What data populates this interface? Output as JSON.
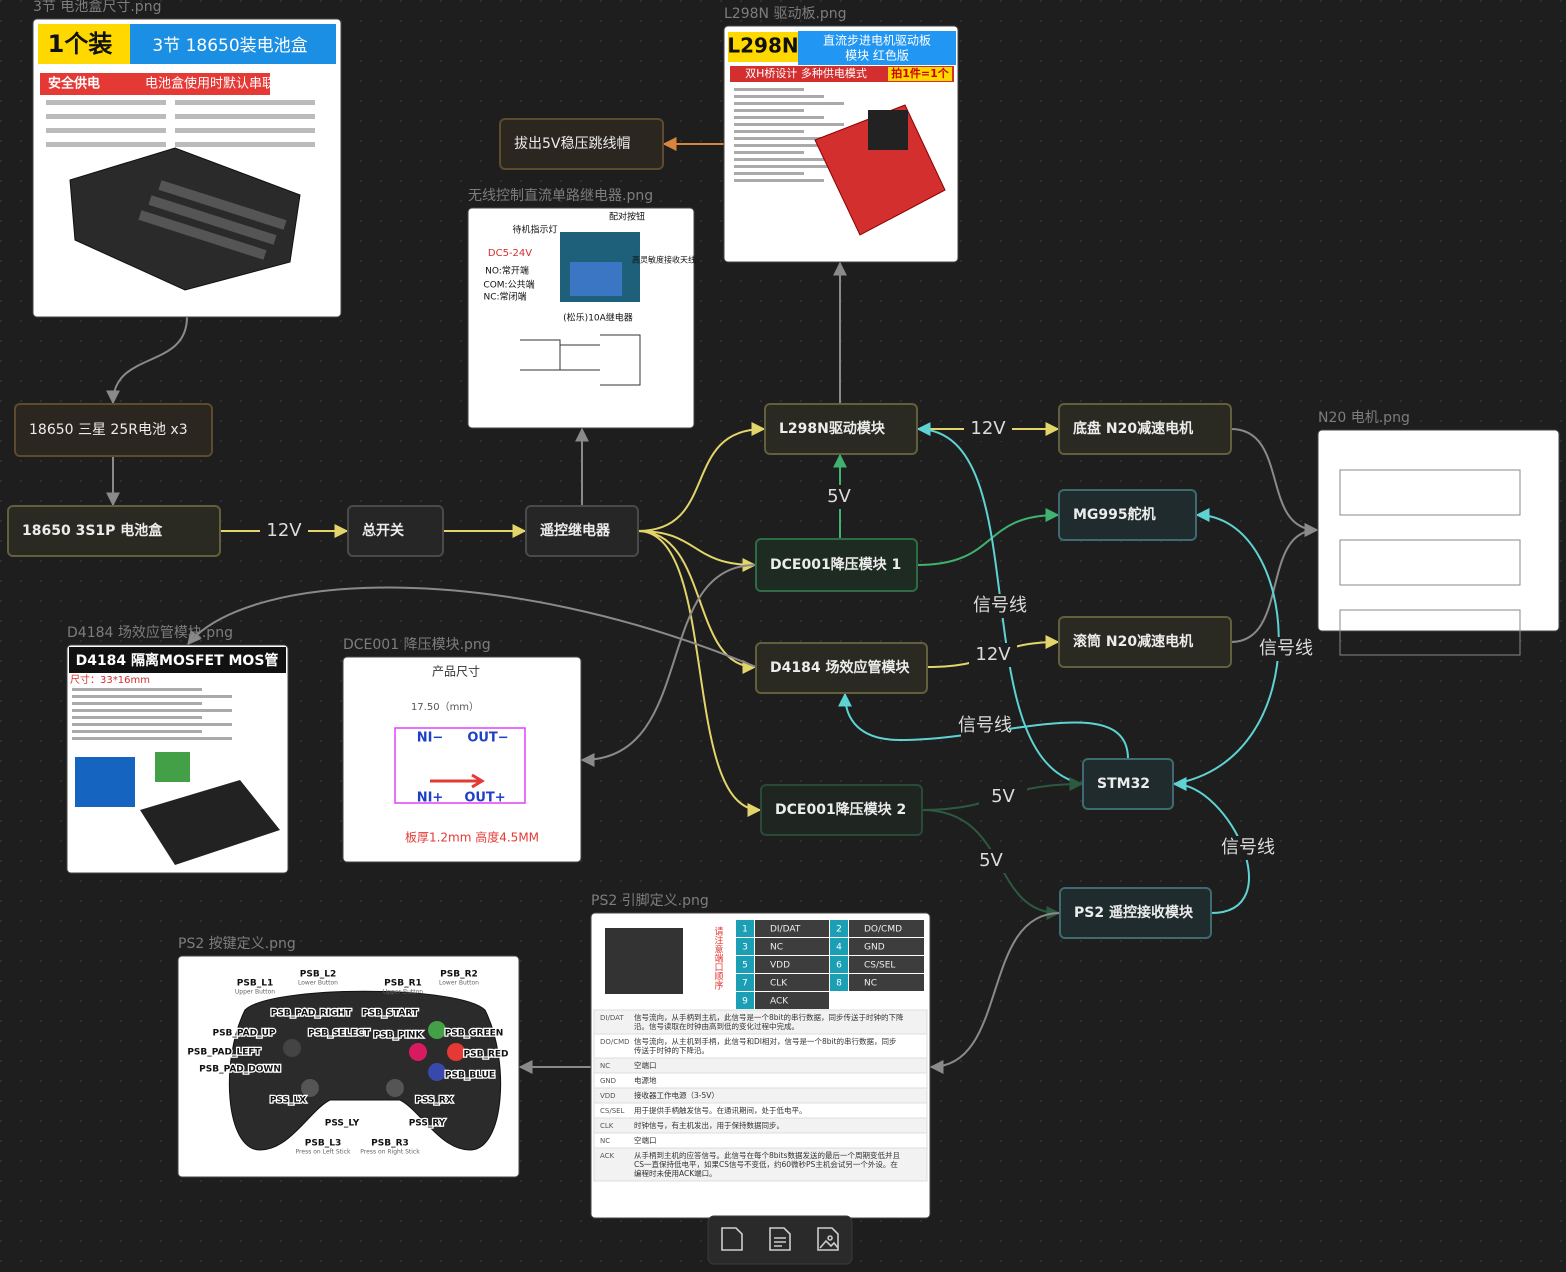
{
  "nodes": [
    {
      "label": "18650 三星 25R电池 x3"
    },
    {
      "label": "18650 3S1P 电池盒"
    },
    {
      "label": "总开关"
    },
    {
      "label": "遥控继电器"
    },
    {
      "label": "拔出5V稳压跳线帽"
    },
    {
      "label": "L298N驱动模块"
    },
    {
      "label": "底盘 N20减速电机"
    },
    {
      "label": "MG995舵机"
    },
    {
      "label": "DCE001降压模块 1"
    },
    {
      "label": "D4184 场效应管模块"
    },
    {
      "label": "滚筒 N20减速电机"
    },
    {
      "label": "STM32"
    },
    {
      "label": "DCE001降压模块 2"
    },
    {
      "label": "PS2 遥控接收模块"
    }
  ],
  "edge_labels": [
    "12V",
    "12V",
    "5V",
    "12V",
    "信号线",
    "信号线",
    "信号线",
    "信号线",
    "5V",
    "5V"
  ],
  "images": [
    {
      "title": "3节 电池盒尺寸.png",
      "content": [
        "1个装",
        "3节 18650装电池盒",
        "安全供电",
        "电池盒使用时默认串联"
      ]
    },
    {
      "title": "L298N 驱动板.png",
      "content": [
        "L298N",
        "直流步进电机驱动板",
        "模块 红色版",
        "双H桥设计 多种供电模式",
        "拍1件=1个"
      ]
    },
    {
      "title": "无线控制直流单路继电器.png",
      "content": [
        "待机指示灯",
        "配对按钮",
        "DC5-24V",
        "NO:常开端",
        "COM:公共端",
        "NC:常闭端",
        "高灵敏度接收天线",
        "(松乐)10A继电器"
      ]
    },
    {
      "title": "N20 电机.png",
      "content": []
    },
    {
      "title": "D4184 场效应管模块.png",
      "content": [
        "D4184 隔离MOSFET MOS管",
        "尺寸：33*16mm"
      ]
    },
    {
      "title": "DCE001 降压模块.png",
      "content": [
        "产品尺寸",
        "17.50（mm）",
        "NI−",
        "OUT−",
        "NI+",
        "OUT+",
        "板厚1.2mm  高度4.5MM"
      ]
    },
    {
      "title": "PS2 引脚定义.png",
      "content": [
        "请注意端口顺序"
      ],
      "pins": [
        {
          "num": 1,
          "name": "DI/DAT"
        },
        {
          "num": 2,
          "name": "DO/CMD"
        },
        {
          "num": 3,
          "name": "NC"
        },
        {
          "num": 4,
          "name": "GND"
        },
        {
          "num": 5,
          "name": "VDD"
        },
        {
          "num": 6,
          "name": "CS/SEL"
        },
        {
          "num": 7,
          "name": "CLK"
        },
        {
          "num": 8,
          "name": "NC"
        },
        {
          "num": 9,
          "name": "ACK"
        }
      ],
      "rows": [
        {
          "name": "DI/DAT",
          "desc": "信号流向，从手柄到主机，此信号是一个8bit的串行数据，同步传送于时钟的下降沿。信号读取在时钟由高到低的变化过程中完成。"
        },
        {
          "name": "DO/CMD",
          "desc": "信号流向，从主机到手柄，此信号和DI相对，信号是一个8bit的串行数据，同步传送于时钟的下降沿。"
        },
        {
          "name": "NC",
          "desc": "空端口"
        },
        {
          "name": "GND",
          "desc": "电源地"
        },
        {
          "name": "VDD",
          "desc": "接收器工作电源（3-5V）"
        },
        {
          "name": "CS/SEL",
          "desc": "用于提供手柄触发信号。在通讯期间，处于低电平。"
        },
        {
          "name": "CLK",
          "desc": "时钟信号，有主机发出，用于保持数据同步。"
        },
        {
          "name": "NC",
          "desc": "空端口"
        },
        {
          "name": "ACK",
          "desc": "从手柄到主机的应答信号。此信号在每个8bits数据发送的最后一个周期变低并且CS一直保持低电平，如果CS信号不变低，约60微秒PS主机会试另一个外设。在编程时未使用ACK端口。"
        }
      ]
    },
    {
      "title": "PS2 按键定义.png",
      "content": [],
      "buttons": [
        {
          "name": "PSB_L1",
          "sub": "Upper Button"
        },
        {
          "name": "PSB_L2",
          "sub": "Lower Button"
        },
        {
          "name": "PSB_R1",
          "sub": "Upper Button"
        },
        {
          "name": "PSB_R2",
          "sub": "Lower Button"
        },
        {
          "name": "PSB_PAD_RIGHT"
        },
        {
          "name": "PSB_START"
        },
        {
          "name": "PSB_PAD_UP"
        },
        {
          "name": "PSB_SELECT"
        },
        {
          "name": "PSB_PINK"
        },
        {
          "name": "PSB_GREEN"
        },
        {
          "name": "PSB_PAD_LEFT"
        },
        {
          "name": "PSB_RED"
        },
        {
          "name": "PSB_PAD_DOWN"
        },
        {
          "name": "PSB_BLUE"
        },
        {
          "name": "PSS_LX"
        },
        {
          "name": "PSS_RX"
        },
        {
          "name": "PSS_LY"
        },
        {
          "name": "PSS_RY"
        },
        {
          "name": "PSB_L3",
          "sub": "Press on Left Stick"
        },
        {
          "name": "PSB_R3",
          "sub": "Press on Right Stick"
        }
      ]
    }
  ]
}
